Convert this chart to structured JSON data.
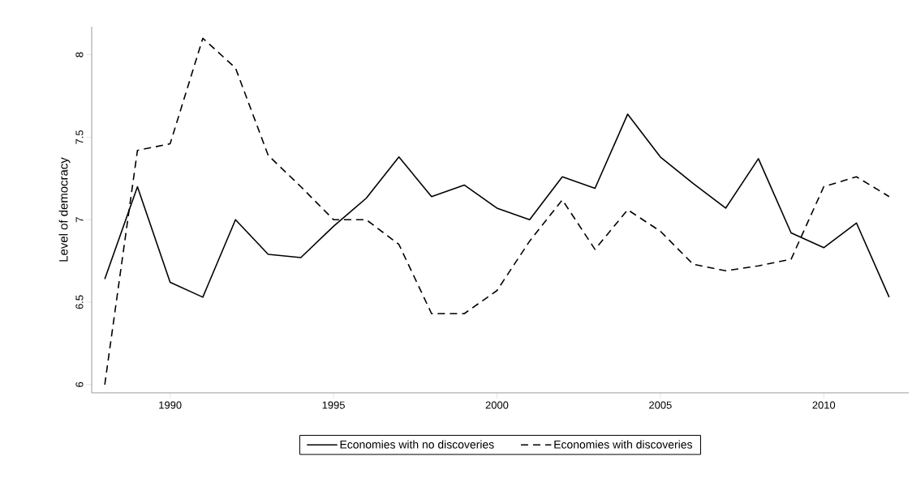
{
  "chart_data": {
    "type": "line",
    "ylabel": "Level of democracy",
    "x": [
      1988,
      1989,
      1990,
      1991,
      1992,
      1993,
      1994,
      1995,
      1996,
      1997,
      1998,
      1999,
      2000,
      2001,
      2002,
      2003,
      2004,
      2005,
      2006,
      2007,
      2008,
      2009,
      2010,
      2011,
      2012
    ],
    "series": [
      {
        "name": "Economies with no discoveries",
        "color": "#000000",
        "line_style": "solid",
        "values": [
          6.64,
          7.2,
          6.62,
          6.53,
          7.0,
          6.79,
          6.77,
          6.96,
          7.13,
          7.38,
          7.14,
          7.21,
          7.07,
          7.0,
          7.26,
          7.19,
          7.64,
          7.38,
          7.22,
          7.07,
          7.37,
          6.92,
          6.83,
          6.98,
          6.53
        ]
      },
      {
        "name": "Economies with discoveries",
        "color": "#000000",
        "line_style": "dashed",
        "values": [
          6.0,
          7.42,
          7.46,
          8.1,
          7.92,
          7.39,
          7.2,
          7.0,
          7.0,
          6.85,
          6.43,
          6.43,
          6.57,
          6.87,
          7.12,
          6.82,
          7.06,
          6.93,
          6.73,
          6.69,
          6.72,
          6.76,
          7.2,
          7.26,
          7.14
        ]
      }
    ],
    "xlim": [
      1987.6,
      2012.6
    ],
    "ylim": [
      5.95,
      8.17
    ],
    "xticks": [
      1990,
      1995,
      2000,
      2005,
      2010
    ],
    "yticks": [
      6,
      6.5,
      7,
      7.5,
      8
    ],
    "grid": false,
    "legend": "bottom",
    "marker": "none"
  }
}
